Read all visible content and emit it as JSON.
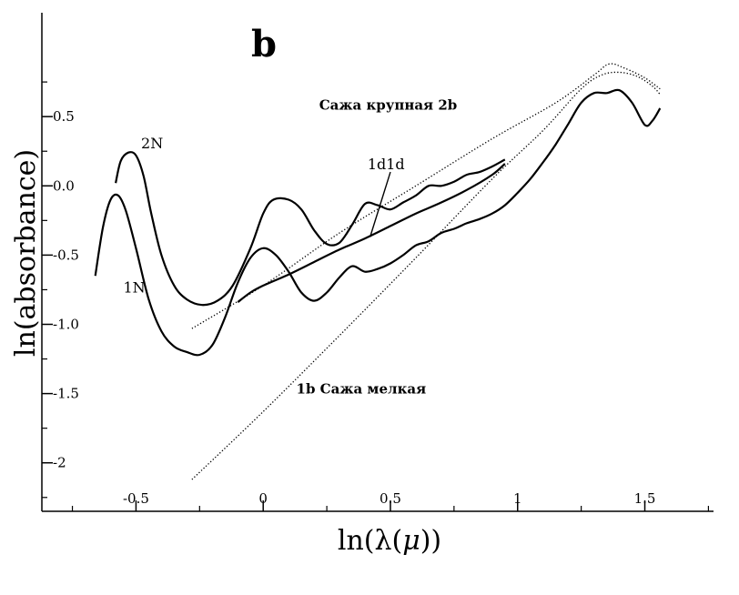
{
  "chart_data": {
    "type": "line",
    "panel_label": "b",
    "xlabel_prefix": "ln(",
    "xlabel_lambda": "λ",
    "xlabel_mid": "(",
    "xlabel_mu": "μ",
    "xlabel_suffix": "))",
    "ylabel": "ln(absorbance)",
    "xlim": [
      -0.87,
      1.77
    ],
    "ylim": [
      -2.35,
      1.25
    ],
    "x_ticks": [
      {
        "value": -0.5,
        "label": "-0.5"
      },
      {
        "value": 0,
        "label": "0"
      },
      {
        "value": 0.5,
        "label": "0.5"
      },
      {
        "value": 1,
        "label": "1"
      },
      {
        "value": 1.5,
        "label": "1.5"
      }
    ],
    "y_ticks": [
      {
        "value": 0.5,
        "label": "0.5"
      },
      {
        "value": 0.0,
        "label": "0.0"
      },
      {
        "value": -0.5,
        "label": "-0.5"
      },
      {
        "value": -1.0,
        "label": "-1.0"
      },
      {
        "value": -1.5,
        "label": "-1.5"
      },
      {
        "value": -2.0,
        "label": "-2"
      }
    ],
    "grid": false,
    "series": [
      {
        "name": "2N",
        "style": "solid",
        "points": [
          [
            -0.58,
            0.02
          ],
          [
            -0.56,
            0.18
          ],
          [
            -0.53,
            0.24
          ],
          [
            -0.5,
            0.22
          ],
          [
            -0.47,
            0.07
          ],
          [
            -0.44,
            -0.2
          ],
          [
            -0.4,
            -0.5
          ],
          [
            -0.35,
            -0.72
          ],
          [
            -0.3,
            -0.82
          ],
          [
            -0.24,
            -0.86
          ],
          [
            -0.18,
            -0.83
          ],
          [
            -0.12,
            -0.72
          ],
          [
            -0.05,
            -0.45
          ],
          [
            0.0,
            -0.2
          ],
          [
            0.04,
            -0.1
          ],
          [
            0.1,
            -0.1
          ],
          [
            0.15,
            -0.17
          ],
          [
            0.2,
            -0.32
          ],
          [
            0.25,
            -0.42
          ],
          [
            0.3,
            -0.41
          ],
          [
            0.35,
            -0.28
          ],
          [
            0.4,
            -0.13
          ],
          [
            0.45,
            -0.14
          ],
          [
            0.5,
            -0.17
          ],
          [
            0.55,
            -0.12
          ],
          [
            0.6,
            -0.07
          ],
          [
            0.65,
            0.0
          ],
          [
            0.7,
            0.0
          ],
          [
            0.75,
            0.03
          ],
          [
            0.8,
            0.08
          ],
          [
            0.85,
            0.1
          ],
          [
            0.9,
            0.14
          ],
          [
            0.95,
            0.19
          ]
        ]
      },
      {
        "name": "1N",
        "style": "solid",
        "points": [
          [
            -0.66,
            -0.65
          ],
          [
            -0.63,
            -0.3
          ],
          [
            -0.6,
            -0.1
          ],
          [
            -0.57,
            -0.07
          ],
          [
            -0.54,
            -0.18
          ],
          [
            -0.5,
            -0.45
          ],
          [
            -0.45,
            -0.82
          ],
          [
            -0.4,
            -1.05
          ],
          [
            -0.35,
            -1.16
          ],
          [
            -0.3,
            -1.2
          ],
          [
            -0.25,
            -1.22
          ],
          [
            -0.2,
            -1.15
          ],
          [
            -0.15,
            -0.95
          ],
          [
            -0.1,
            -0.7
          ],
          [
            -0.05,
            -0.52
          ],
          [
            0.0,
            -0.45
          ],
          [
            0.05,
            -0.5
          ],
          [
            0.1,
            -0.62
          ],
          [
            0.15,
            -0.77
          ],
          [
            0.2,
            -0.83
          ],
          [
            0.25,
            -0.77
          ],
          [
            0.3,
            -0.66
          ],
          [
            0.35,
            -0.58
          ],
          [
            0.4,
            -0.62
          ],
          [
            0.45,
            -0.6
          ],
          [
            0.5,
            -0.56
          ],
          [
            0.55,
            -0.5
          ],
          [
            0.6,
            -0.43
          ],
          [
            0.65,
            -0.4
          ],
          [
            0.7,
            -0.34
          ],
          [
            0.75,
            -0.31
          ],
          [
            0.8,
            -0.27
          ],
          [
            0.85,
            -0.24
          ],
          [
            0.9,
            -0.2
          ],
          [
            0.95,
            -0.14
          ],
          [
            1.0,
            -0.05
          ],
          [
            1.05,
            0.05
          ],
          [
            1.1,
            0.17
          ],
          [
            1.15,
            0.3
          ],
          [
            1.2,
            0.45
          ],
          [
            1.25,
            0.6
          ],
          [
            1.3,
            0.67
          ],
          [
            1.35,
            0.67
          ],
          [
            1.4,
            0.69
          ],
          [
            1.45,
            0.6
          ],
          [
            1.5,
            0.44
          ],
          [
            1.53,
            0.47
          ],
          [
            1.56,
            0.56
          ]
        ]
      },
      {
        "name": "1d1d",
        "style": "solid",
        "points": [
          [
            -0.1,
            -0.84
          ],
          [
            -0.05,
            -0.77
          ],
          [
            0.0,
            -0.72
          ],
          [
            0.1,
            -0.64
          ],
          [
            0.2,
            -0.55
          ],
          [
            0.3,
            -0.46
          ],
          [
            0.4,
            -0.38
          ],
          [
            0.5,
            -0.29
          ],
          [
            0.6,
            -0.2
          ],
          [
            0.7,
            -0.12
          ],
          [
            0.8,
            -0.03
          ],
          [
            0.9,
            0.08
          ],
          [
            0.95,
            0.16
          ]
        ]
      },
      {
        "name": "2b",
        "style": "dotted",
        "points": [
          [
            -0.28,
            -1.03
          ],
          [
            0.0,
            -0.72
          ],
          [
            0.3,
            -0.34
          ],
          [
            0.6,
            0.0
          ],
          [
            0.9,
            0.34
          ],
          [
            1.15,
            0.6
          ],
          [
            1.3,
            0.8
          ],
          [
            1.36,
            0.88
          ],
          [
            1.42,
            0.85
          ],
          [
            1.5,
            0.78
          ],
          [
            1.56,
            0.7
          ]
        ]
      },
      {
        "name": "1b",
        "style": "dotted",
        "points": [
          [
            -0.28,
            -2.12
          ],
          [
            0.0,
            -1.63
          ],
          [
            0.3,
            -1.08
          ],
          [
            0.6,
            -0.52
          ],
          [
            0.9,
            0.05
          ],
          [
            1.1,
            0.4
          ],
          [
            1.25,
            0.7
          ],
          [
            1.33,
            0.8
          ],
          [
            1.4,
            0.82
          ],
          [
            1.47,
            0.79
          ],
          [
            1.53,
            0.72
          ],
          [
            1.56,
            0.66
          ]
        ]
      }
    ],
    "annotations": [
      {
        "text": "2N",
        "style": "normal",
        "at": [
          -0.48,
          0.27
        ]
      },
      {
        "text": "1N",
        "style": "normal",
        "at": [
          -0.55,
          -0.77
        ]
      },
      {
        "text": "Сажа крупная  2b",
        "style": "bold",
        "at": [
          0.22,
          0.55
        ]
      },
      {
        "text": "1d1d",
        "style": "normal",
        "at": [
          0.41,
          0.12
        ]
      },
      {
        "text": "1b  Сажа мелкая",
        "style": "bold",
        "at": [
          0.13,
          -1.5
        ]
      }
    ]
  }
}
